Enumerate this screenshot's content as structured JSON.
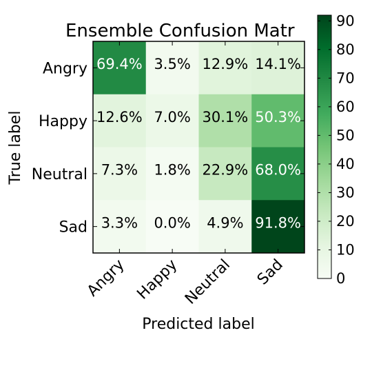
{
  "chart_data": {
    "type": "heatmap",
    "title": "Ensemble Confusion Matr",
    "xlabel": "Predicted label",
    "ylabel": "True label",
    "x_categories": [
      "Angry",
      "Happy",
      "Neutral",
      "Sad"
    ],
    "y_categories": [
      "Angry",
      "Happy",
      "Neutral",
      "Sad"
    ],
    "values": [
      [
        69.4,
        3.5,
        12.9,
        14.1
      ],
      [
        12.6,
        7.0,
        30.1,
        50.3
      ],
      [
        7.3,
        1.8,
        22.9,
        68.0
      ],
      [
        3.3,
        0.0,
        4.9,
        91.8
      ]
    ],
    "cell_labels": [
      [
        "69.4%",
        "3.5%",
        "12.9%",
        "14.1%"
      ],
      [
        "12.6%",
        "7.0%",
        "30.1%",
        "50.3%"
      ],
      [
        "7.3%",
        "1.8%",
        "22.9%",
        "68.0%"
      ],
      [
        "3.3%",
        "0.0%",
        "4.9%",
        "91.8%"
      ]
    ],
    "colorbar": {
      "range": [
        0,
        92
      ],
      "ticks": [
        "0",
        "10",
        "20",
        "30",
        "40",
        "50",
        "60",
        "70",
        "80",
        "90"
      ]
    },
    "colormap": "Greens",
    "colors": {
      "light": "#f7fcf5",
      "dark": "#00441b"
    }
  }
}
